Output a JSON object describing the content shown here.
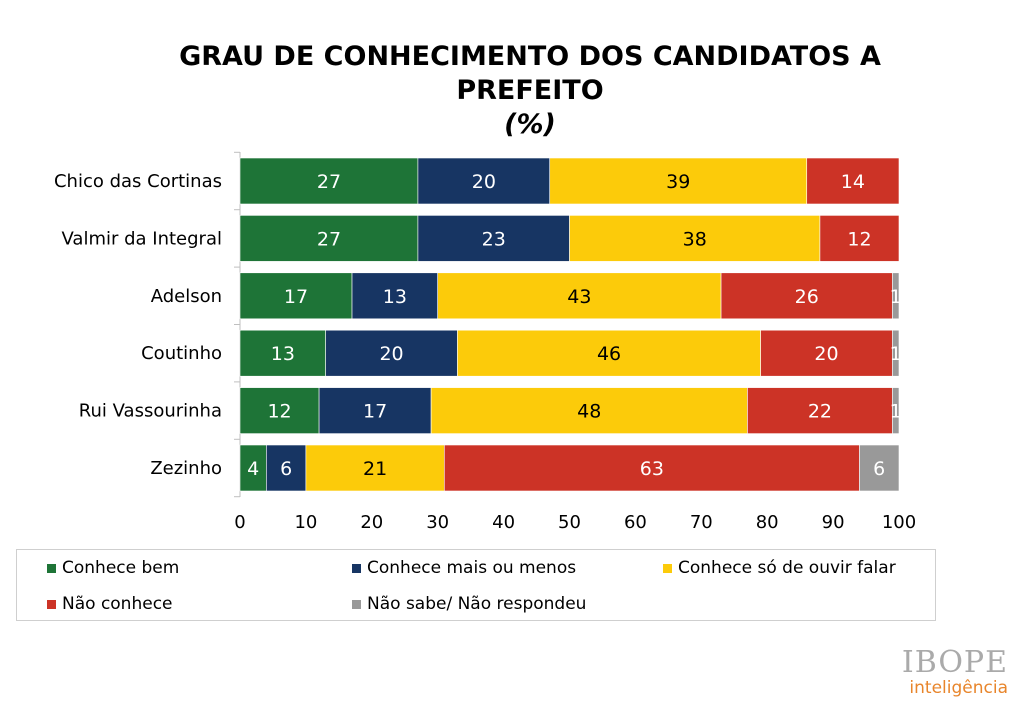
{
  "title": {
    "line1": "GRAU DE CONHECIMENTO DOS CANDIDATOS A",
    "line2": "PREFEITO",
    "line3": "(%)"
  },
  "colors": {
    "conhece_bem": "#1e7437",
    "conhece_mais_ou_menos": "#173563",
    "conhece_so_de_ouvir": "#fccb0a",
    "nao_conhece": "#cc3326",
    "nao_sabe": "#999999"
  },
  "legend": [
    {
      "label": "Conhece bem",
      "color": "#1e7437"
    },
    {
      "label": "Conhece mais ou menos",
      "color": "#173563"
    },
    {
      "label": "Conhece só de ouvir falar",
      "color": "#fccb0a"
    },
    {
      "label": "Não conhece",
      "color": "#cc3326"
    },
    {
      "label": "Não sabe/ Não respondeu",
      "color": "#999999"
    }
  ],
  "brand": {
    "name": "IBOPE",
    "sub": "inteligência"
  },
  "chart_data": {
    "type": "bar",
    "orientation": "horizontal",
    "stacked": true,
    "categories": [
      "Chico das Cortinas",
      "Valmir da Integral",
      "Adelson",
      "Coutinho",
      "Rui Vassourinha",
      "Zezinho"
    ],
    "series": [
      {
        "name": "Conhece bem",
        "values": [
          27,
          27,
          17,
          13,
          12,
          4
        ]
      },
      {
        "name": "Conhece mais ou menos",
        "values": [
          20,
          23,
          13,
          20,
          17,
          6
        ]
      },
      {
        "name": "Conhece só de ouvir falar",
        "values": [
          39,
          38,
          43,
          46,
          48,
          21
        ]
      },
      {
        "name": "Não conhece",
        "values": [
          14,
          12,
          26,
          20,
          22,
          63
        ]
      },
      {
        "name": "Não sabe/ Não respondeu",
        "values": [
          0,
          0,
          1,
          1,
          1,
          6
        ]
      }
    ],
    "xlim": [
      0,
      100
    ],
    "xticks": [
      0,
      10,
      20,
      30,
      40,
      50,
      60,
      70,
      80,
      90,
      100
    ],
    "grid": false,
    "legend_position": "bottom"
  }
}
